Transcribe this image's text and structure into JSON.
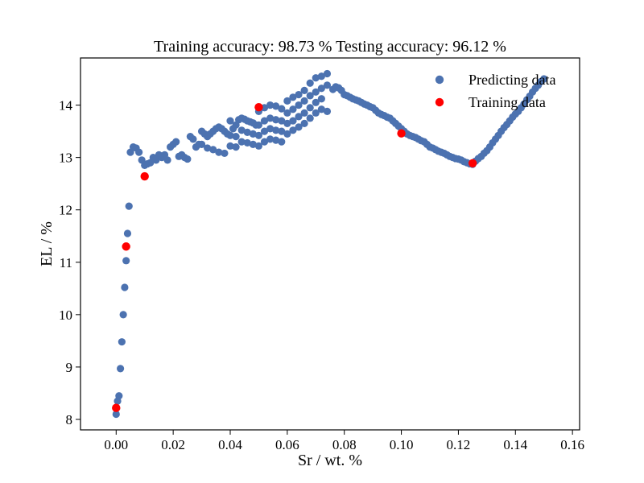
{
  "chart_data": {
    "type": "scatter",
    "title": "Training accuracy: 98.73 %  Testing accuracy: 96.12 %",
    "xlabel": "Sr / wt. %",
    "ylabel": "EL / %",
    "xlim": [
      -0.0125,
      0.1625
    ],
    "ylim": [
      7.8,
      14.9
    ],
    "xticks": [
      0.0,
      0.02,
      0.04,
      0.06,
      0.08,
      0.1,
      0.12,
      0.14,
      0.16
    ],
    "xtick_labels": [
      "0.00",
      "0.02",
      "0.04",
      "0.06",
      "0.08",
      "0.10",
      "0.12",
      "0.14",
      "0.16"
    ],
    "yticks": [
      8,
      9,
      10,
      11,
      12,
      13,
      14
    ],
    "ytick_labels": [
      "8",
      "9",
      "10",
      "11",
      "12",
      "13",
      "14"
    ],
    "grid": false,
    "legend_position": "top-right",
    "series": [
      {
        "name": "Predicting data",
        "color": "#4c72b0",
        "points": [
          [
            0.0,
            8.1
          ],
          [
            0.0005,
            8.35
          ],
          [
            0.001,
            8.45
          ],
          [
            0.0015,
            8.97
          ],
          [
            0.002,
            9.48
          ],
          [
            0.0025,
            10.0
          ],
          [
            0.003,
            10.52
          ],
          [
            0.0035,
            11.03
          ],
          [
            0.004,
            11.55
          ],
          [
            0.0045,
            12.07
          ],
          [
            0.005,
            13.1
          ],
          [
            0.006,
            13.2
          ],
          [
            0.007,
            13.18
          ],
          [
            0.008,
            13.1
          ],
          [
            0.009,
            12.95
          ],
          [
            0.01,
            12.85
          ],
          [
            0.011,
            12.88
          ],
          [
            0.012,
            12.9
          ],
          [
            0.013,
            13.0
          ],
          [
            0.014,
            12.95
          ],
          [
            0.015,
            13.05
          ],
          [
            0.016,
            13.0
          ],
          [
            0.017,
            13.05
          ],
          [
            0.018,
            12.95
          ],
          [
            0.019,
            13.2
          ],
          [
            0.02,
            13.25
          ],
          [
            0.021,
            13.3
          ],
          [
            0.022,
            13.02
          ],
          [
            0.023,
            13.05
          ],
          [
            0.024,
            13.0
          ],
          [
            0.025,
            12.97
          ],
          [
            0.026,
            13.4
          ],
          [
            0.027,
            13.35
          ],
          [
            0.028,
            13.2
          ],
          [
            0.029,
            13.25
          ],
          [
            0.03,
            13.5
          ],
          [
            0.031,
            13.45
          ],
          [
            0.032,
            13.4
          ],
          [
            0.033,
            13.45
          ],
          [
            0.034,
            13.5
          ],
          [
            0.035,
            13.55
          ],
          [
            0.036,
            13.58
          ],
          [
            0.037,
            13.55
          ],
          [
            0.038,
            13.5
          ],
          [
            0.039,
            13.45
          ],
          [
            0.04,
            13.7
          ],
          [
            0.041,
            13.55
          ],
          [
            0.042,
            13.62
          ],
          [
            0.043,
            13.72
          ],
          [
            0.044,
            13.75
          ],
          [
            0.045,
            13.73
          ],
          [
            0.046,
            13.7
          ],
          [
            0.047,
            13.68
          ],
          [
            0.048,
            13.66
          ],
          [
            0.049,
            13.62
          ],
          [
            0.05,
            13.88
          ],
          [
            0.052,
            13.95
          ],
          [
            0.054,
            14.0
          ],
          [
            0.056,
            13.98
          ],
          [
            0.058,
            13.93
          ],
          [
            0.06,
            14.08
          ],
          [
            0.062,
            14.15
          ],
          [
            0.064,
            14.2
          ],
          [
            0.066,
            14.28
          ],
          [
            0.068,
            14.42
          ],
          [
            0.07,
            14.52
          ],
          [
            0.072,
            14.55
          ],
          [
            0.074,
            14.6
          ],
          [
            0.076,
            14.3
          ],
          [
            0.077,
            14.35
          ],
          [
            0.078,
            14.33
          ],
          [
            0.079,
            14.28
          ],
          [
            0.08,
            14.2
          ],
          [
            0.081,
            14.18
          ],
          [
            0.082,
            14.15
          ],
          [
            0.083,
            14.12
          ],
          [
            0.084,
            14.1
          ],
          [
            0.085,
            14.08
          ],
          [
            0.086,
            14.05
          ],
          [
            0.087,
            14.02
          ],
          [
            0.088,
            14.0
          ],
          [
            0.089,
            13.97
          ],
          [
            0.09,
            13.95
          ],
          [
            0.091,
            13.9
          ],
          [
            0.092,
            13.85
          ],
          [
            0.093,
            13.82
          ],
          [
            0.094,
            13.8
          ],
          [
            0.095,
            13.77
          ],
          [
            0.096,
            13.75
          ],
          [
            0.097,
            13.7
          ],
          [
            0.098,
            13.65
          ],
          [
            0.099,
            13.6
          ],
          [
            0.1,
            13.55
          ],
          [
            0.101,
            13.5
          ],
          [
            0.102,
            13.45
          ],
          [
            0.103,
            13.42
          ],
          [
            0.104,
            13.4
          ],
          [
            0.105,
            13.38
          ],
          [
            0.106,
            13.35
          ],
          [
            0.107,
            13.32
          ],
          [
            0.108,
            13.3
          ],
          [
            0.109,
            13.25
          ],
          [
            0.11,
            13.2
          ],
          [
            0.111,
            13.18
          ],
          [
            0.112,
            13.15
          ],
          [
            0.113,
            13.12
          ],
          [
            0.114,
            13.1
          ],
          [
            0.115,
            13.08
          ],
          [
            0.116,
            13.05
          ],
          [
            0.117,
            13.02
          ],
          [
            0.118,
            13.0
          ],
          [
            0.119,
            12.98
          ],
          [
            0.12,
            12.97
          ],
          [
            0.121,
            12.95
          ],
          [
            0.122,
            12.92
          ],
          [
            0.123,
            12.9
          ],
          [
            0.124,
            12.88
          ],
          [
            0.125,
            12.87
          ],
          [
            0.126,
            12.93
          ],
          [
            0.127,
            12.98
          ],
          [
            0.128,
            13.02
          ],
          [
            0.129,
            13.08
          ],
          [
            0.13,
            13.13
          ],
          [
            0.131,
            13.2
          ],
          [
            0.132,
            13.28
          ],
          [
            0.133,
            13.35
          ],
          [
            0.134,
            13.42
          ],
          [
            0.135,
            13.5
          ],
          [
            0.136,
            13.57
          ],
          [
            0.137,
            13.63
          ],
          [
            0.138,
            13.7
          ],
          [
            0.139,
            13.77
          ],
          [
            0.14,
            13.83
          ],
          [
            0.141,
            13.88
          ],
          [
            0.142,
            13.95
          ],
          [
            0.143,
            14.02
          ],
          [
            0.144,
            14.1
          ],
          [
            0.145,
            14.17
          ],
          [
            0.146,
            14.25
          ],
          [
            0.147,
            14.32
          ],
          [
            0.148,
            14.38
          ],
          [
            0.149,
            14.45
          ],
          [
            0.15,
            14.5
          ],
          [
            0.03,
            13.25
          ],
          [
            0.032,
            13.18
          ],
          [
            0.034,
            13.15
          ],
          [
            0.036,
            13.1
          ],
          [
            0.038,
            13.08
          ],
          [
            0.04,
            13.42
          ],
          [
            0.042,
            13.4
          ],
          [
            0.044,
            13.52
          ],
          [
            0.046,
            13.48
          ],
          [
            0.048,
            13.45
          ],
          [
            0.05,
            13.62
          ],
          [
            0.052,
            13.7
          ],
          [
            0.054,
            13.75
          ],
          [
            0.056,
            13.72
          ],
          [
            0.058,
            13.7
          ],
          [
            0.06,
            13.85
          ],
          [
            0.062,
            13.92
          ],
          [
            0.064,
            14.0
          ],
          [
            0.066,
            14.08
          ],
          [
            0.068,
            14.18
          ],
          [
            0.07,
            14.25
          ],
          [
            0.072,
            14.32
          ],
          [
            0.074,
            14.38
          ],
          [
            0.05,
            13.42
          ],
          [
            0.052,
            13.5
          ],
          [
            0.054,
            13.55
          ],
          [
            0.056,
            13.52
          ],
          [
            0.058,
            13.5
          ],
          [
            0.06,
            13.65
          ],
          [
            0.062,
            13.7
          ],
          [
            0.064,
            13.78
          ],
          [
            0.066,
            13.85
          ],
          [
            0.068,
            13.95
          ],
          [
            0.07,
            14.05
          ],
          [
            0.072,
            14.12
          ],
          [
            0.04,
            13.22
          ],
          [
            0.042,
            13.2
          ],
          [
            0.044,
            13.3
          ],
          [
            0.046,
            13.28
          ],
          [
            0.048,
            13.25
          ],
          [
            0.05,
            13.22
          ],
          [
            0.052,
            13.3
          ],
          [
            0.054,
            13.35
          ],
          [
            0.056,
            13.33
          ],
          [
            0.058,
            13.3
          ],
          [
            0.06,
            13.45
          ],
          [
            0.062,
            13.52
          ],
          [
            0.064,
            13.58
          ],
          [
            0.066,
            13.65
          ],
          [
            0.068,
            13.75
          ],
          [
            0.07,
            13.85
          ],
          [
            0.072,
            13.92
          ],
          [
            0.074,
            13.88
          ]
        ]
      },
      {
        "name": "Training data",
        "color": "#ff0000",
        "points": [
          [
            0.0,
            8.22
          ],
          [
            0.0035,
            11.3
          ],
          [
            0.01,
            12.64
          ],
          [
            0.05,
            13.96
          ],
          [
            0.1,
            13.46
          ],
          [
            0.125,
            12.89
          ]
        ]
      }
    ]
  }
}
